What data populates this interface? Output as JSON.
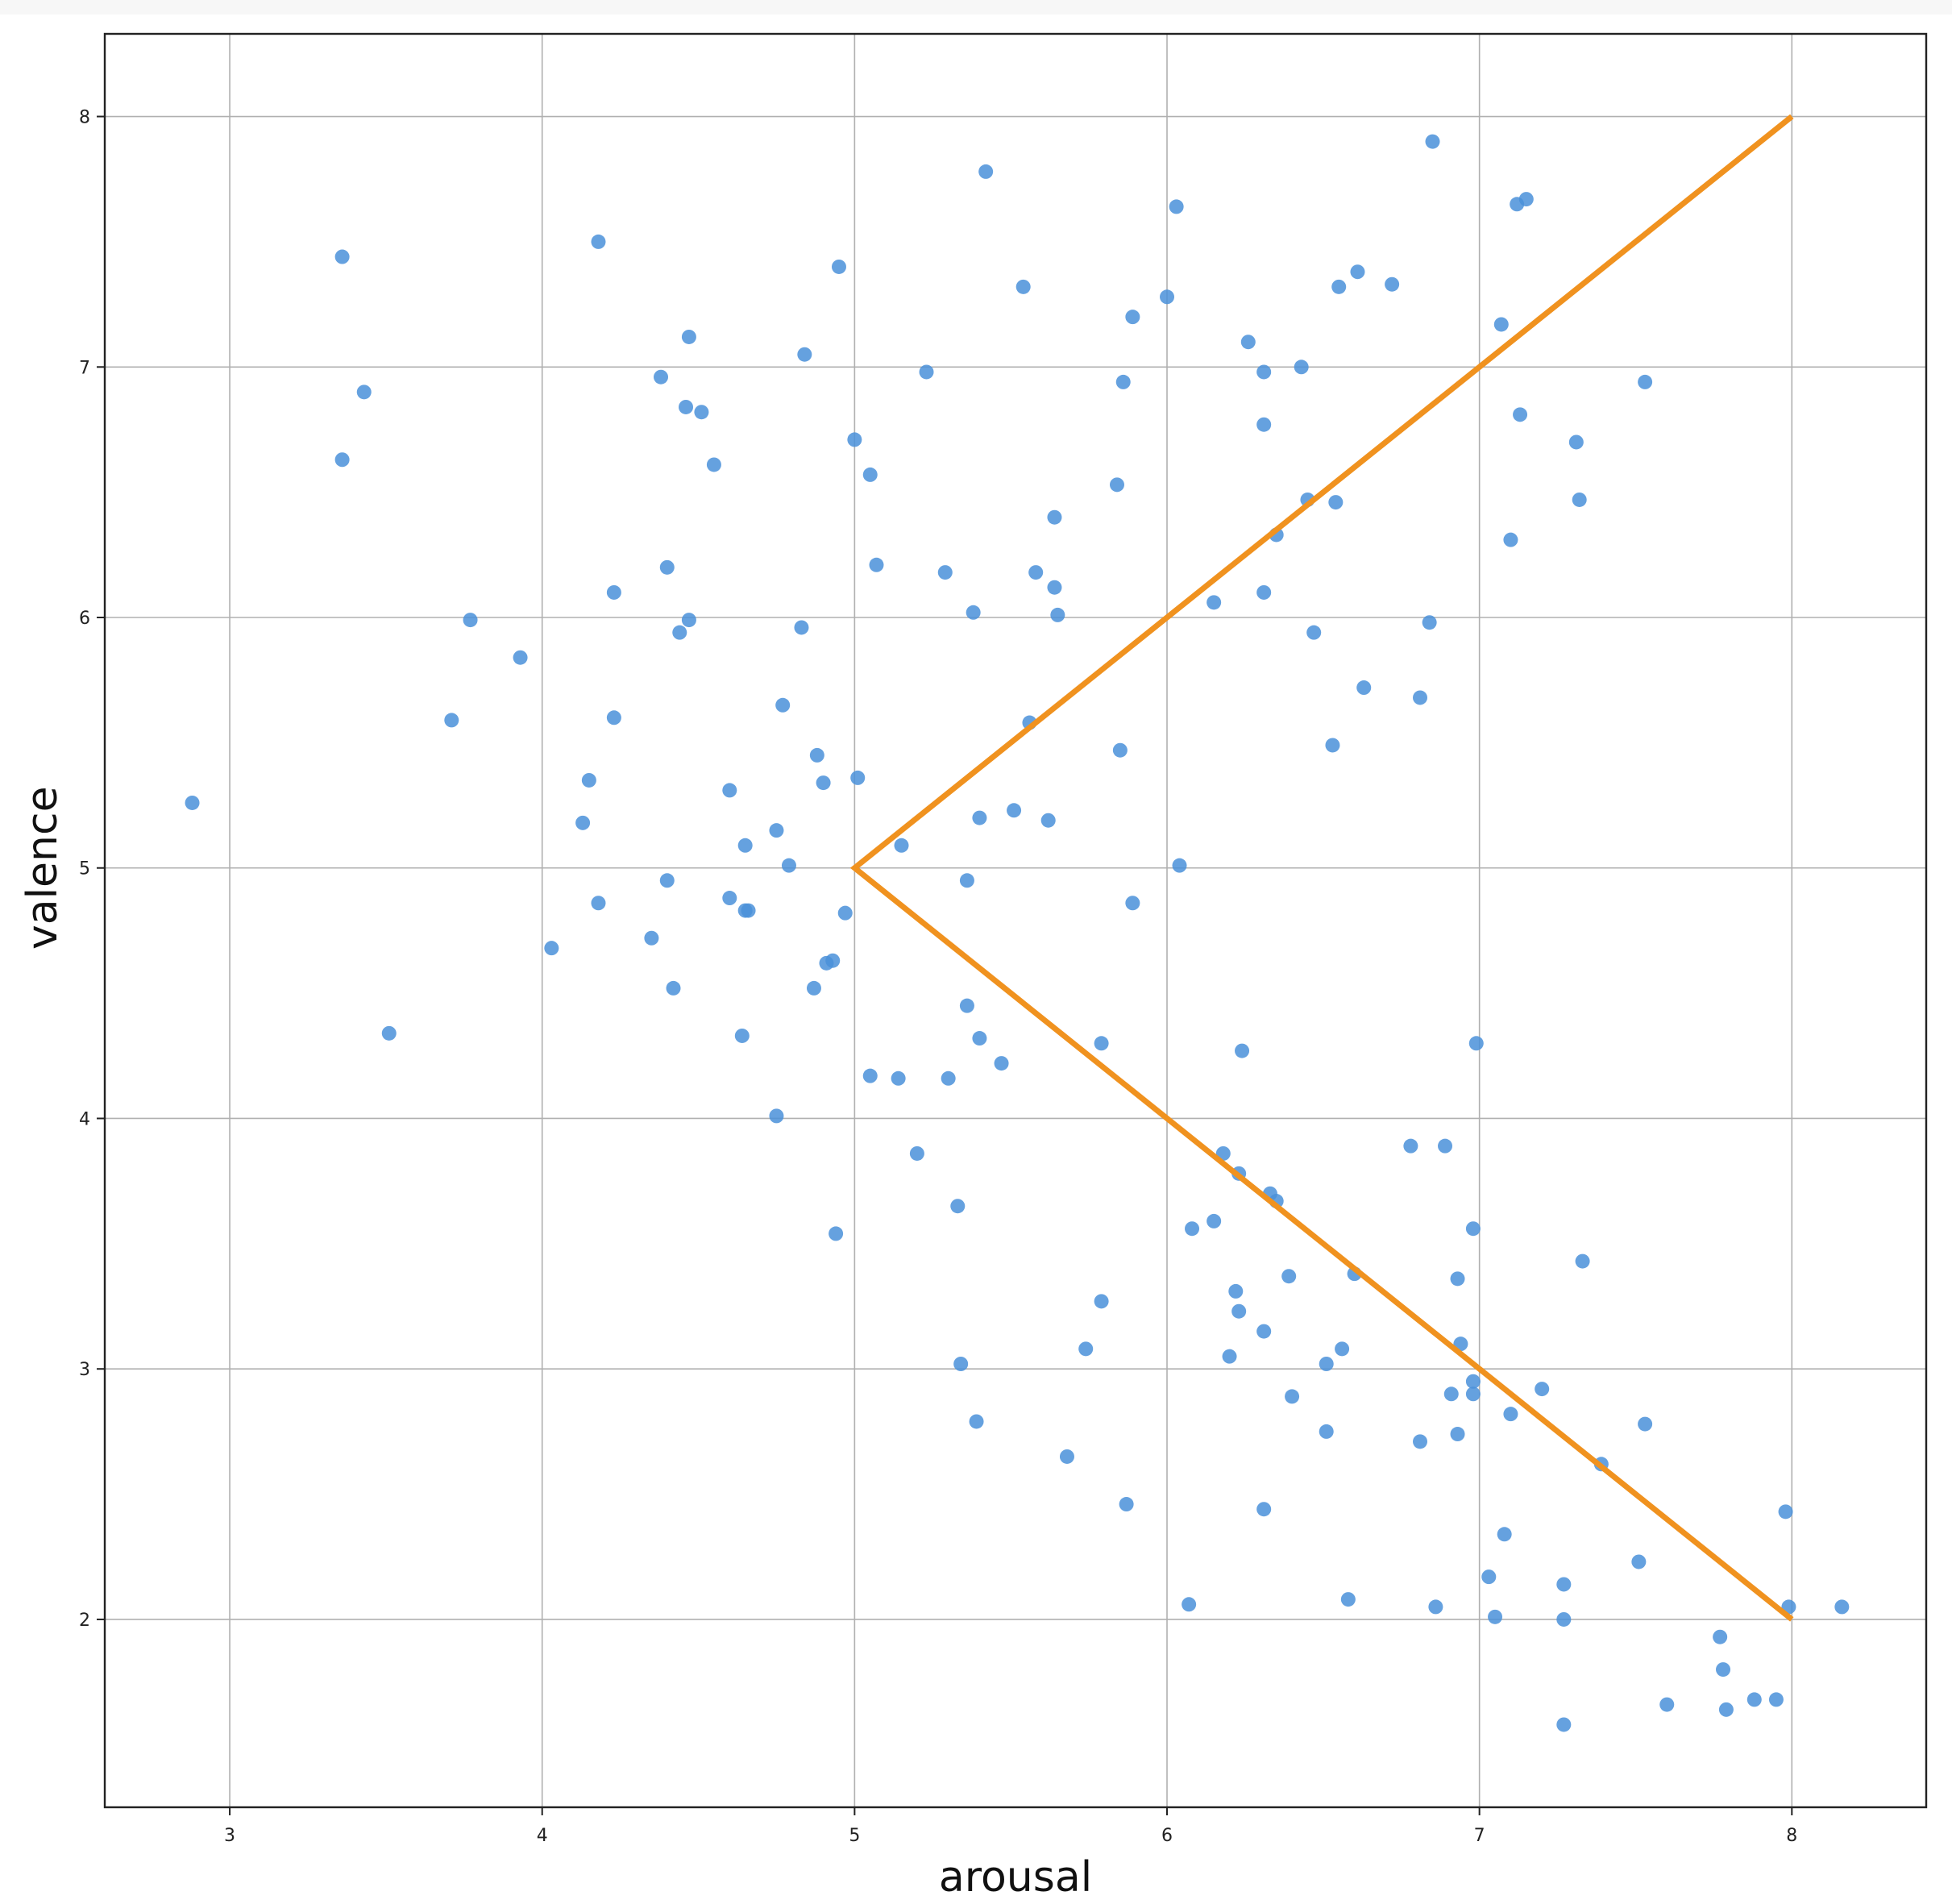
{
  "chart_data": {
    "type": "scatter",
    "title": "",
    "xlabel": "arousal",
    "ylabel": "valence",
    "xlim": [
      2.6,
      8.43
    ],
    "ylim": [
      1.25,
      8.33
    ],
    "xticks": [
      3,
      4,
      5,
      6,
      7,
      8
    ],
    "yticks": [
      2,
      3,
      4,
      5,
      6,
      7,
      8
    ],
    "grid": true,
    "colors": {
      "points": "#4a90d9",
      "line": "#f0921f"
    },
    "series": [
      {
        "type": "scatter",
        "points": [
          [
            2.88,
            5.26
          ],
          [
            3.36,
            7.44
          ],
          [
            3.36,
            6.63
          ],
          [
            3.43,
            6.9
          ],
          [
            3.51,
            4.34
          ],
          [
            3.71,
            5.59
          ],
          [
            3.77,
            5.99
          ],
          [
            3.93,
            5.84
          ],
          [
            4.03,
            4.68
          ],
          [
            4.13,
            5.18
          ],
          [
            4.15,
            5.35
          ],
          [
            4.18,
            7.5
          ],
          [
            4.18,
            4.86
          ],
          [
            4.23,
            6.1
          ],
          [
            4.23,
            5.6
          ],
          [
            4.35,
            4.72
          ],
          [
            4.38,
            6.96
          ],
          [
            4.4,
            6.2
          ],
          [
            4.4,
            4.95
          ],
          [
            4.42,
            4.52
          ],
          [
            4.44,
            5.94
          ],
          [
            4.46,
            6.84
          ],
          [
            4.47,
            7.12
          ],
          [
            4.47,
            5.99
          ],
          [
            4.51,
            6.82
          ],
          [
            4.55,
            6.61
          ],
          [
            4.6,
            5.31
          ],
          [
            4.6,
            4.88
          ],
          [
            4.64,
            4.33
          ],
          [
            4.65,
            5.09
          ],
          [
            4.65,
            4.83
          ],
          [
            4.66,
            4.83
          ],
          [
            4.75,
            5.15
          ],
          [
            4.75,
            4.01
          ],
          [
            4.77,
            5.65
          ],
          [
            4.79,
            5.01
          ],
          [
            4.83,
            5.96
          ],
          [
            4.84,
            7.05
          ],
          [
            4.87,
            4.52
          ],
          [
            4.88,
            5.45
          ],
          [
            4.9,
            5.34
          ],
          [
            4.91,
            4.62
          ],
          [
            4.93,
            4.63
          ],
          [
            4.94,
            3.54
          ],
          [
            4.95,
            7.4
          ],
          [
            4.97,
            4.82
          ],
          [
            5.0,
            6.71
          ],
          [
            5.01,
            5.36
          ],
          [
            5.05,
            6.57
          ],
          [
            5.05,
            4.17
          ],
          [
            5.07,
            6.21
          ],
          [
            5.14,
            4.16
          ],
          [
            5.15,
            5.09
          ],
          [
            5.2,
            3.86
          ],
          [
            5.23,
            6.98
          ],
          [
            5.29,
            6.18
          ],
          [
            5.3,
            4.16
          ],
          [
            5.33,
            3.65
          ],
          [
            5.34,
            3.02
          ],
          [
            5.36,
            4.45
          ],
          [
            5.36,
            4.95
          ],
          [
            5.38,
            6.02
          ],
          [
            5.39,
            2.79
          ],
          [
            5.4,
            5.2
          ],
          [
            5.4,
            4.32
          ],
          [
            5.42,
            7.78
          ],
          [
            5.47,
            4.22
          ],
          [
            5.51,
            5.23
          ],
          [
            5.54,
            7.32
          ],
          [
            5.56,
            5.58
          ],
          [
            5.58,
            6.18
          ],
          [
            5.62,
            5.19
          ],
          [
            5.64,
            6.4
          ],
          [
            5.64,
            6.12
          ],
          [
            5.65,
            6.01
          ],
          [
            5.68,
            2.65
          ],
          [
            5.74,
            3.08
          ],
          [
            5.79,
            3.27
          ],
          [
            5.79,
            4.3
          ],
          [
            5.84,
            6.53
          ],
          [
            5.85,
            5.47
          ],
          [
            5.86,
            6.94
          ],
          [
            5.87,
            2.46
          ],
          [
            5.89,
            7.2
          ],
          [
            5.89,
            4.86
          ],
          [
            6.0,
            7.28
          ],
          [
            6.03,
            7.64
          ],
          [
            6.04,
            5.01
          ],
          [
            6.07,
            2.06
          ],
          [
            6.08,
            3.56
          ],
          [
            6.15,
            6.06
          ],
          [
            6.15,
            3.59
          ],
          [
            6.18,
            3.86
          ],
          [
            6.2,
            3.05
          ],
          [
            6.22,
            3.31
          ],
          [
            6.23,
            3.78
          ],
          [
            6.23,
            3.23
          ],
          [
            6.24,
            4.27
          ],
          [
            6.26,
            7.1
          ],
          [
            6.31,
            6.98
          ],
          [
            6.31,
            6.77
          ],
          [
            6.31,
            6.1
          ],
          [
            6.31,
            3.15
          ],
          [
            6.31,
            2.44
          ],
          [
            6.33,
            3.7
          ],
          [
            6.35,
            6.33
          ],
          [
            6.35,
            3.67
          ],
          [
            6.39,
            3.37
          ],
          [
            6.4,
            2.89
          ],
          [
            6.43,
            7.0
          ],
          [
            6.45,
            6.47
          ],
          [
            6.47,
            5.94
          ],
          [
            6.51,
            3.02
          ],
          [
            6.51,
            2.75
          ],
          [
            6.53,
            5.49
          ],
          [
            6.54,
            6.46
          ],
          [
            6.55,
            7.32
          ],
          [
            6.56,
            3.08
          ],
          [
            6.58,
            2.08
          ],
          [
            6.6,
            3.38
          ],
          [
            6.61,
            7.38
          ],
          [
            6.63,
            5.72
          ],
          [
            6.72,
            7.33
          ],
          [
            6.78,
            3.89
          ],
          [
            6.81,
            5.68
          ],
          [
            6.81,
            2.71
          ],
          [
            6.84,
            5.98
          ],
          [
            6.85,
            7.9
          ],
          [
            6.86,
            2.05
          ],
          [
            6.89,
            3.89
          ],
          [
            6.91,
            2.9
          ],
          [
            6.93,
            3.36
          ],
          [
            6.93,
            2.74
          ],
          [
            6.94,
            3.1
          ],
          [
            6.98,
            3.56
          ],
          [
            6.98,
            2.95
          ],
          [
            6.98,
            2.9
          ],
          [
            6.99,
            4.3
          ],
          [
            7.03,
            2.17
          ],
          [
            7.05,
            2.01
          ],
          [
            7.07,
            7.17
          ],
          [
            7.08,
            2.34
          ],
          [
            7.1,
            6.31
          ],
          [
            7.1,
            2.82
          ],
          [
            7.12,
            7.65
          ],
          [
            7.13,
            6.81
          ],
          [
            7.15,
            7.67
          ],
          [
            7.2,
            2.92
          ],
          [
            7.27,
            2.14
          ],
          [
            7.27,
            2.0
          ],
          [
            7.27,
            1.58
          ],
          [
            7.31,
            6.7
          ],
          [
            7.32,
            6.47
          ],
          [
            7.33,
            3.43
          ],
          [
            7.39,
            2.62
          ],
          [
            7.51,
            2.23
          ],
          [
            7.53,
            6.94
          ],
          [
            7.53,
            2.78
          ],
          [
            7.6,
            1.66
          ],
          [
            7.77,
            1.93
          ],
          [
            7.78,
            1.8
          ],
          [
            7.79,
            1.64
          ],
          [
            7.88,
            1.68
          ],
          [
            7.95,
            1.68
          ],
          [
            7.98,
            2.43
          ],
          [
            7.99,
            2.05
          ],
          [
            8.16,
            2.05
          ]
        ]
      },
      {
        "type": "line",
        "points": [
          [
            8,
            8
          ],
          [
            5,
            5
          ],
          [
            8,
            2
          ]
        ]
      }
    ]
  }
}
